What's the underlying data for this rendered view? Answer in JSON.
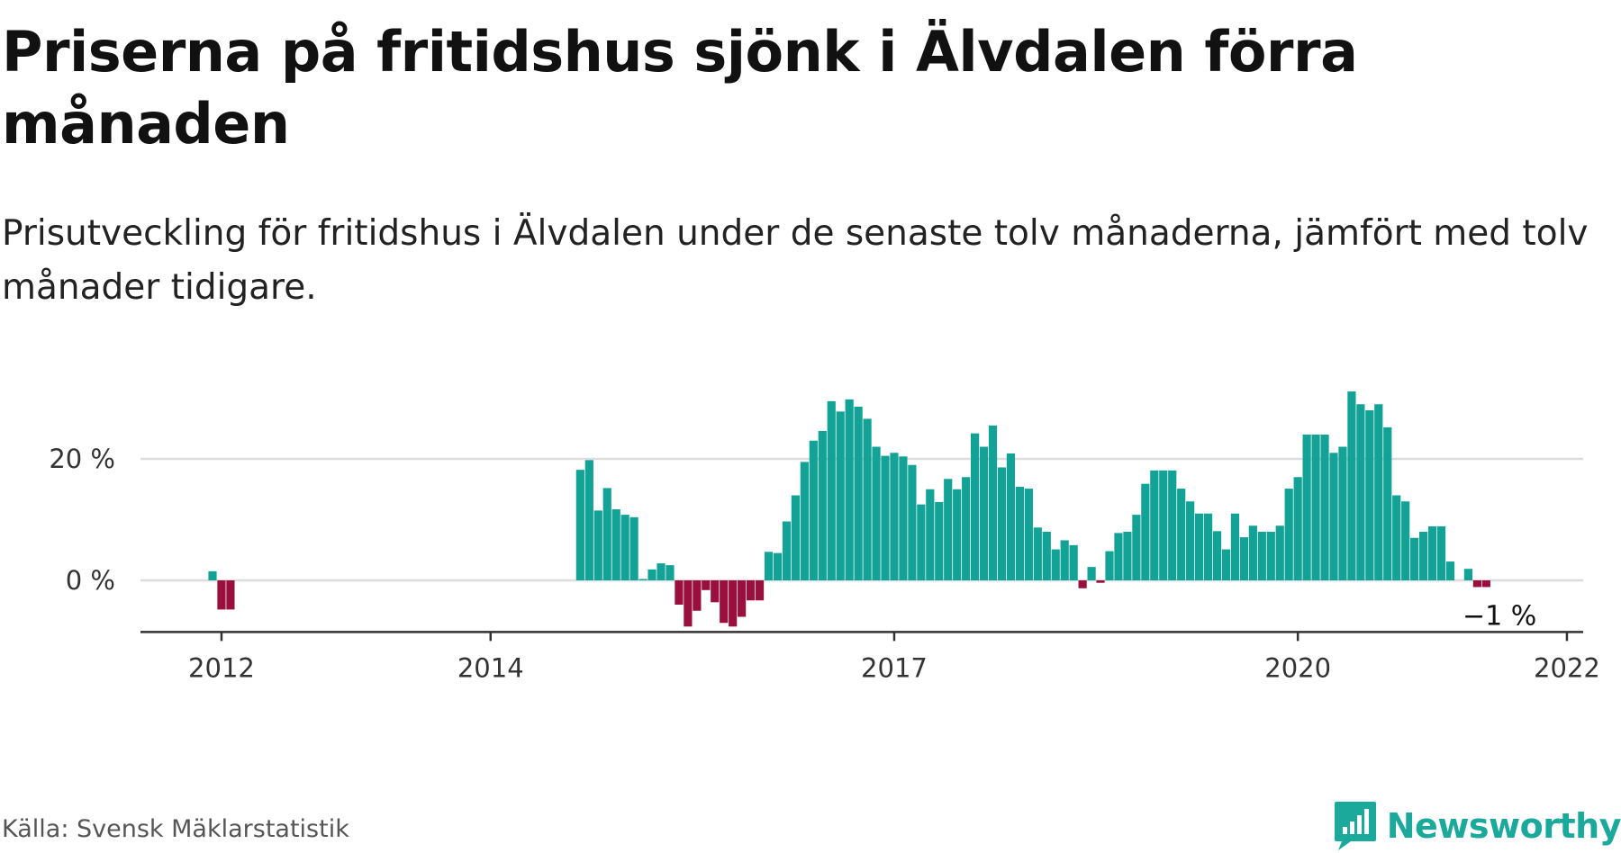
{
  "header": {
    "title": "Priserna på fritidshus sjönk i Älvdalen förra månaden",
    "subtitle": "Prisutveckling för fritidshus i Älvdalen under de senaste tolv månaderna, jämfört med tolv månader tidigare."
  },
  "footer": {
    "source": "Källa: Svensk Mäklarstatistik",
    "brand": "Newsworthy"
  },
  "colors": {
    "positive": "#13a396",
    "negative": "#990f3d",
    "grid": "#dddddd",
    "axis": "#333333",
    "brand": "#1aa99a"
  },
  "icons": {
    "brand": "newsworthy-logo-icon"
  },
  "chart_data": {
    "type": "bar",
    "title": "Priserna på fritidshus sjönk i Älvdalen förra månaden",
    "subtitle": "Prisutveckling för fritidshus i Älvdalen under de senaste tolv månaderna, jämfört med tolv månader tidigare.",
    "ylim": [
      -8.5,
      31
    ],
    "yticks": [
      {
        "value": 0,
        "label": "0 %"
      },
      {
        "value": 20,
        "label": "20 %"
      }
    ],
    "xticks": [
      {
        "index": 1,
        "label": "2012"
      },
      {
        "index": 31,
        "label": "2014"
      },
      {
        "index": 76,
        "label": "2017"
      },
      {
        "index": 121,
        "label": "2020"
      },
      {
        "index": 151,
        "label": "2022"
      }
    ],
    "grid": true,
    "values": [
      1.5,
      -4.8,
      -4.8,
      null,
      null,
      null,
      null,
      null,
      null,
      null,
      null,
      null,
      null,
      null,
      null,
      null,
      null,
      null,
      null,
      null,
      null,
      null,
      null,
      null,
      null,
      null,
      null,
      null,
      null,
      null,
      null,
      null,
      null,
      null,
      null,
      null,
      null,
      null,
      null,
      null,
      null,
      18.2,
      19.8,
      11.5,
      15.2,
      11.7,
      10.8,
      10.4,
      0.2,
      1.8,
      2.8,
      2.5,
      -4,
      -7.6,
      -5,
      -1.6,
      -3.6,
      -7,
      -7.6,
      -6,
      -3.3,
      -3.3,
      4.7,
      4.5,
      9.7,
      14,
      19.5,
      23,
      24.6,
      29.5,
      27.8,
      29.8,
      28.6,
      26.6,
      22,
      20.5,
      21,
      20.4,
      19,
      12.5,
      15,
      12.9,
      16.7,
      15,
      17,
      24.2,
      22,
      25.5,
      18.6,
      20.9,
      15.4,
      15.1,
      8.7,
      8,
      5.1,
      6.6,
      5.8,
      -1.3,
      2.2,
      -0.4,
      4.8,
      7.8,
      8,
      10.8,
      15.9,
      18.1,
      18.1,
      18.1,
      15.1,
      13,
      11,
      11,
      8.1,
      5.1,
      11,
      7.1,
      9,
      8,
      8,
      9,
      15.1,
      17,
      24,
      24,
      24,
      21,
      22,
      31.1,
      29,
      28,
      29,
      25.2,
      14,
      13,
      7,
      8,
      8.9,
      8.9,
      3.1,
      null,
      1.9,
      -1.1,
      -1.1
    ],
    "last_label": "−1 %"
  }
}
